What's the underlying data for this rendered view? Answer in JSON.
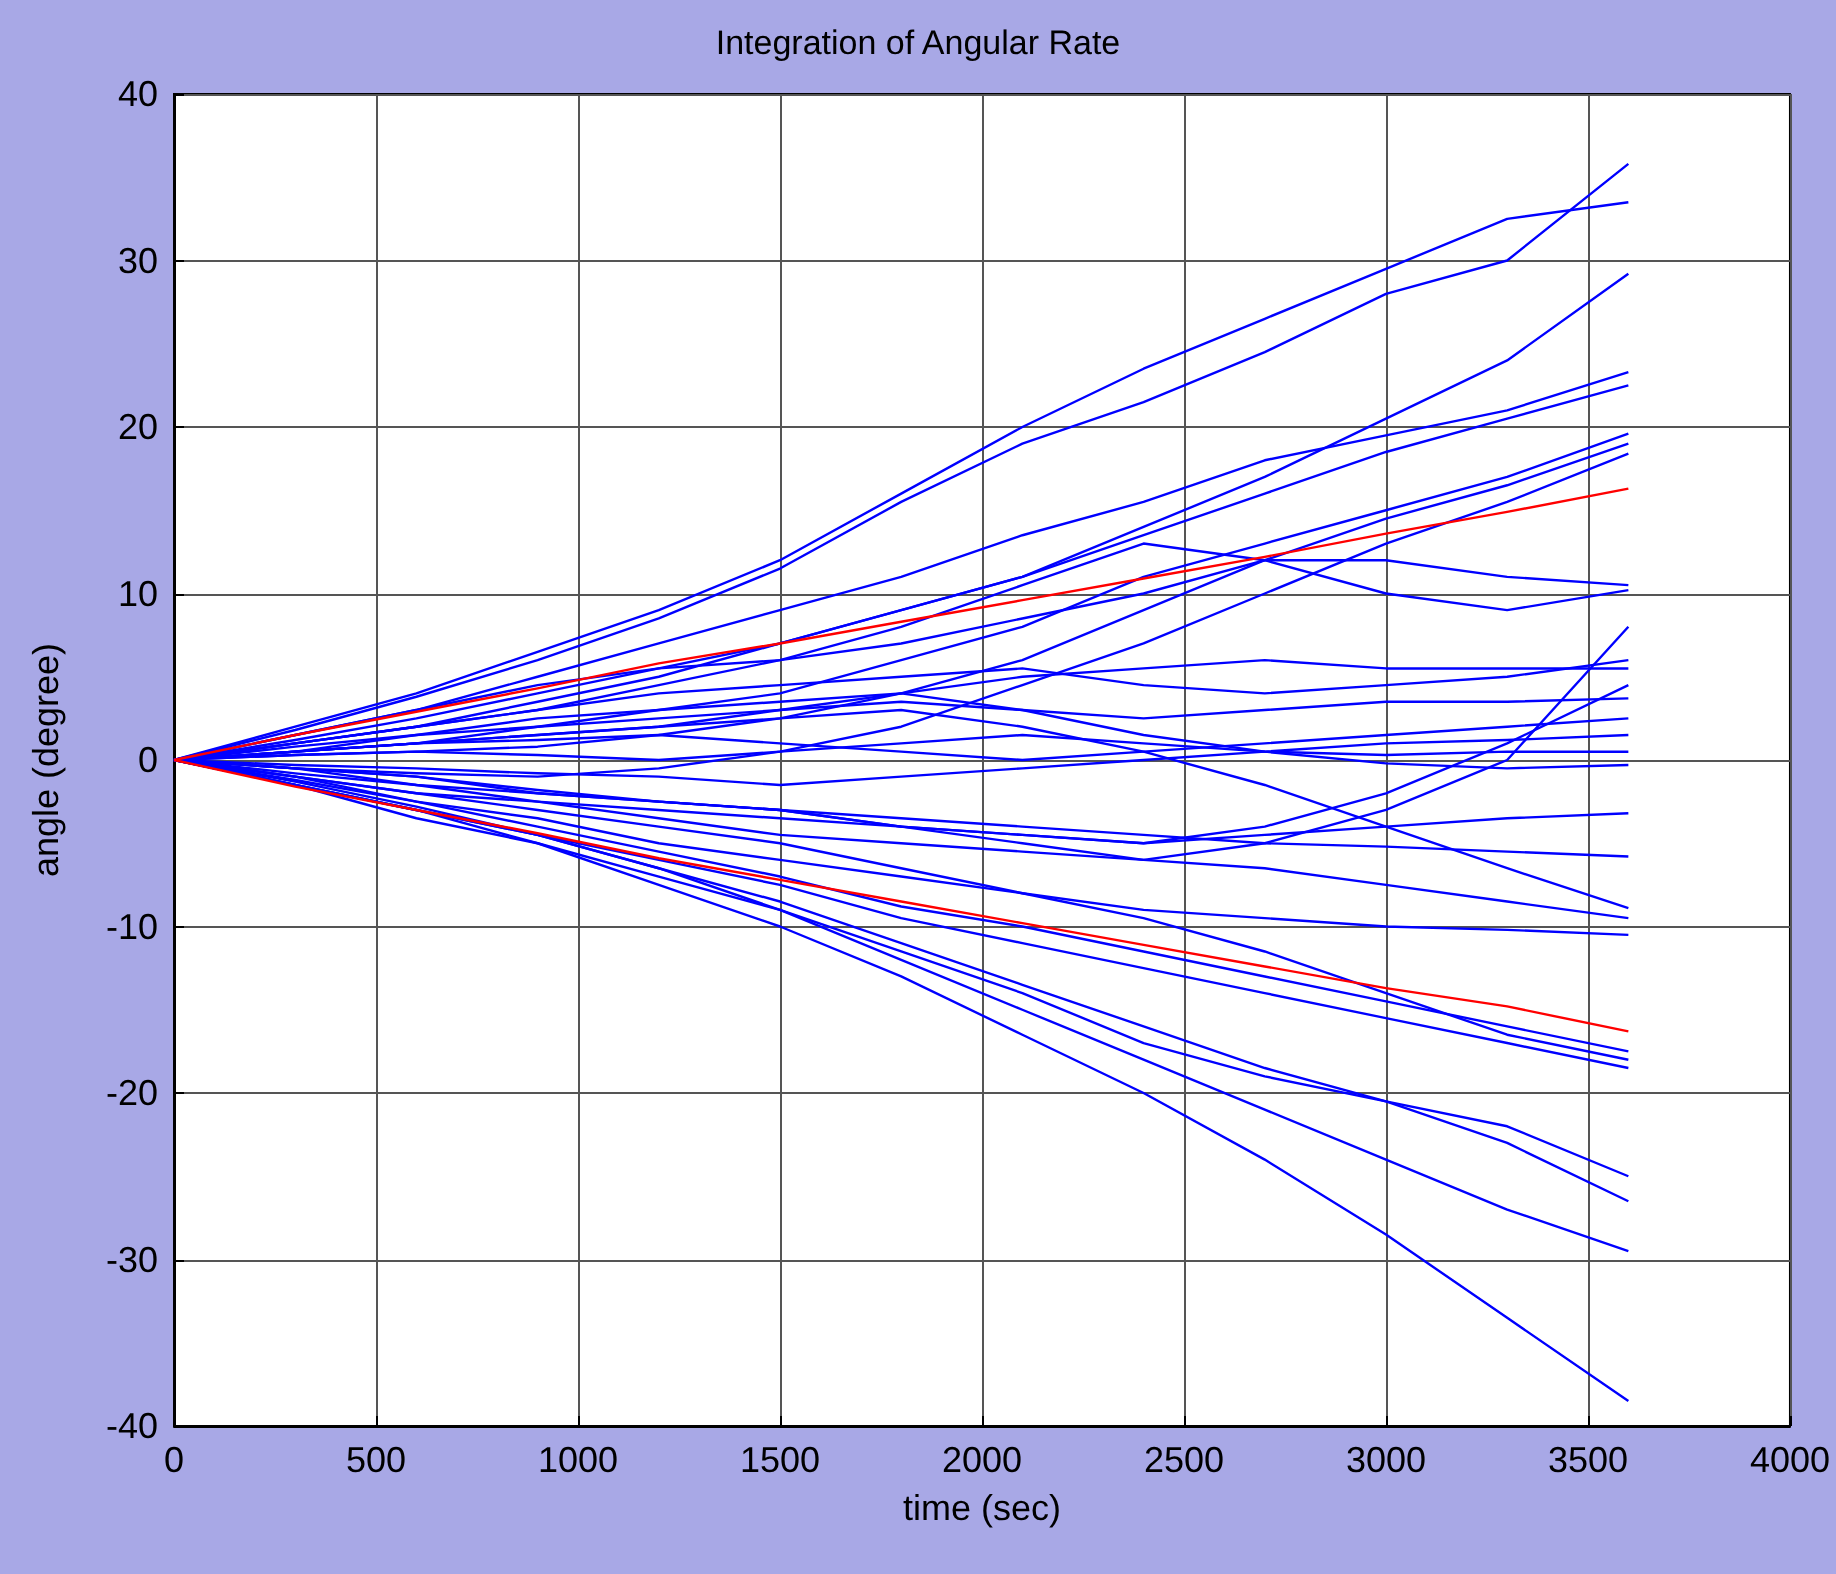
{
  "chart_data": {
    "type": "line",
    "title": "Integration of Angular Rate",
    "xlabel": "time (sec)",
    "ylabel": "angle (degree)",
    "x": [
      0,
      300,
      600,
      900,
      1200,
      1500,
      1800,
      2100,
      2400,
      2700,
      3000,
      3300,
      3600
    ],
    "xlim": [
      0,
      4000
    ],
    "xticks": [
      0,
      500,
      1000,
      1500,
      2000,
      2500,
      3000,
      3500,
      4000
    ],
    "ylim": [
      -40,
      40
    ],
    "yticks": [
      -40,
      -30,
      -20,
      -10,
      0,
      10,
      20,
      30,
      40
    ],
    "grid": true,
    "series": [
      {
        "color": "#0000ff",
        "values": [
          0,
          2,
          4,
          6.5,
          9,
          12,
          16,
          20,
          23.5,
          26.5,
          29.5,
          32.5,
          33.5
        ]
      },
      {
        "color": "#0000ff",
        "values": [
          0,
          1.8,
          3.8,
          6,
          8.5,
          11.5,
          15.5,
          19,
          21.5,
          24.5,
          28,
          30,
          35.8
        ]
      },
      {
        "color": "#0000ff",
        "values": [
          0,
          1,
          2,
          3.5,
          5,
          7,
          9,
          11,
          14,
          17,
          20.5,
          24,
          29.2
        ]
      },
      {
        "color": "#0000ff",
        "values": [
          0,
          1.5,
          3,
          5,
          7,
          9,
          11,
          13.5,
          15.5,
          18,
          19.5,
          21,
          23.3
        ]
      },
      {
        "color": "#0000ff",
        "values": [
          0,
          1.2,
          2.5,
          4,
          5.5,
          7,
          9,
          11,
          13.5,
          16,
          18.5,
          20.5,
          22.5
        ]
      },
      {
        "color": "#0000ff",
        "values": [
          0,
          0.5,
          1,
          2,
          3,
          4,
          6,
          8,
          11,
          13,
          15,
          17,
          19.6
        ]
      },
      {
        "color": "#0000ff",
        "values": [
          0,
          0.3,
          0.5,
          0.8,
          1.5,
          2.5,
          4,
          6,
          9,
          12,
          14.5,
          16.5,
          19.0
        ]
      },
      {
        "color": "#0000ff",
        "values": [
          0,
          -0.5,
          -0.8,
          -1,
          -0.5,
          0.5,
          2,
          4.5,
          7,
          10,
          13,
          15.5,
          18.4
        ]
      },
      {
        "color": "#0000ff",
        "values": [
          0,
          1.5,
          3,
          4.5,
          5.5,
          6,
          7,
          8.5,
          10,
          12,
          12,
          11,
          10.5
        ]
      },
      {
        "color": "#0000ff",
        "values": [
          0,
          1,
          2,
          3,
          4.5,
          6,
          8,
          10.5,
          13,
          12,
          10,
          9,
          10.2
        ]
      },
      {
        "color": "#0000ff",
        "values": [
          0,
          -0.5,
          -1,
          -1.8,
          -2.5,
          -3,
          -4,
          -5,
          -6,
          -5,
          -3,
          0,
          8
        ]
      },
      {
        "color": "#0000ff",
        "values": [
          0,
          1,
          2,
          3,
          4,
          4.5,
          5,
          5.5,
          4.5,
          4,
          4.5,
          5,
          6
        ]
      },
      {
        "color": "#0000ff",
        "values": [
          0,
          0.5,
          1,
          1.5,
          2,
          3,
          4,
          5,
          5.5,
          6,
          5.5,
          5.5,
          5.5
        ]
      },
      {
        "color": "#0000ff",
        "values": [
          0,
          -0.5,
          -1,
          -2,
          -2.5,
          -3,
          -4,
          -4.5,
          -5,
          -4,
          -2,
          1,
          4.5
        ]
      },
      {
        "color": "#0000ff",
        "values": [
          0,
          0.8,
          1.5,
          2,
          2.5,
          3,
          3.5,
          3,
          2.5,
          3,
          3.5,
          3.5,
          3.7
        ]
      },
      {
        "color": "#0000ff",
        "values": [
          0,
          0.5,
          1,
          1.2,
          1.5,
          1,
          0.5,
          0,
          0.5,
          1,
          1.5,
          2,
          2.5
        ]
      },
      {
        "color": "#0000ff",
        "values": [
          0,
          -0.3,
          -0.5,
          -0.8,
          -1,
          -1.5,
          -1,
          -0.5,
          0,
          0.5,
          1,
          1.2,
          1.5
        ]
      },
      {
        "color": "#0000ff",
        "values": [
          0,
          0.3,
          0.5,
          0.3,
          0,
          0.5,
          1,
          1.5,
          1,
          0.5,
          0.3,
          0.5,
          0.5
        ]
      },
      {
        "color": "#0000ff",
        "values": [
          0,
          0.5,
          1.5,
          2.5,
          3,
          3.5,
          4,
          3,
          1.5,
          0.5,
          -0.2,
          -0.5,
          -0.3
        ]
      },
      {
        "color": "#0000ff",
        "values": [
          0,
          -1,
          -2,
          -2.5,
          -3,
          -3.5,
          -4,
          -4.5,
          -5,
          -4.5,
          -4,
          -3.5,
          -3.2
        ]
      },
      {
        "color": "#0000ff",
        "values": [
          0,
          -0.8,
          -1.5,
          -2,
          -2.5,
          -3,
          -3.5,
          -4,
          -4.5,
          -5,
          -5.2,
          -5.5,
          -5.8
        ]
      },
      {
        "color": "#0000ff",
        "values": [
          0,
          0.5,
          1,
          1.5,
          2,
          2.5,
          3,
          2,
          0.5,
          -1.5,
          -4,
          -6.5,
          -8.9
        ]
      },
      {
        "color": "#0000ff",
        "values": [
          0,
          -0.5,
          -1.5,
          -2.5,
          -3.5,
          -4.5,
          -5,
          -5.5,
          -6,
          -6.5,
          -7.5,
          -8.5,
          -9.5
        ]
      },
      {
        "color": "#0000ff",
        "values": [
          0,
          -1,
          -2,
          -3,
          -4,
          -5,
          -6.5,
          -8,
          -9,
          -9.5,
          -10,
          -10.2,
          -10.5
        ]
      },
      {
        "color": "#0000ff",
        "values": [
          0,
          -1.2,
          -2.5,
          -4,
          -5.5,
          -7,
          -8.8,
          -10,
          -11.5,
          -13,
          -14.5,
          -16,
          -17.5
        ]
      },
      {
        "color": "#0000ff",
        "values": [
          0,
          -1,
          -2.5,
          -3.5,
          -5,
          -6,
          -7,
          -8,
          -9.5,
          -11.5,
          -14,
          -16.5,
          -18
        ]
      },
      {
        "color": "#0000ff",
        "values": [
          0,
          -1.3,
          -2.8,
          -4.5,
          -6,
          -7.5,
          -9.5,
          -11,
          -12.5,
          -14,
          -15.5,
          -17,
          -18.5
        ]
      },
      {
        "color": "#0000ff",
        "values": [
          0,
          -1.5,
          -3,
          -4.5,
          -6.5,
          -9,
          -11.5,
          -14,
          -17,
          -19,
          -20.5,
          -22,
          -25
        ]
      },
      {
        "color": "#0000ff",
        "values": [
          0,
          -1.5,
          -3,
          -4.5,
          -6.5,
          -8.5,
          -11,
          -13.5,
          -16,
          -18.5,
          -20.5,
          -23,
          -26.5
        ]
      },
      {
        "color": "#0000ff",
        "values": [
          0,
          -1.5,
          -3.5,
          -5,
          -7,
          -9,
          -12,
          -15,
          -18,
          -21,
          -24,
          -27,
          -29.5
        ]
      },
      {
        "color": "#0000ff",
        "values": [
          0,
          -1.5,
          -3,
          -5,
          -7.5,
          -10,
          -13,
          -16.5,
          -20,
          -24,
          -28.5,
          -33.5,
          -38.5
        ]
      },
      {
        "color": "#ff0000",
        "values": [
          0,
          1.5,
          2.9,
          4.3,
          5.8,
          7,
          8.3,
          9.6,
          10.9,
          12.2,
          13.6,
          14.9,
          16.3
        ]
      },
      {
        "color": "#ff0000",
        "values": [
          0,
          -1.6,
          -3,
          -4.4,
          -5.9,
          -7.2,
          -8.5,
          -9.8,
          -11.1,
          -12.4,
          -13.7,
          -14.8,
          -16.3
        ]
      }
    ]
  }
}
